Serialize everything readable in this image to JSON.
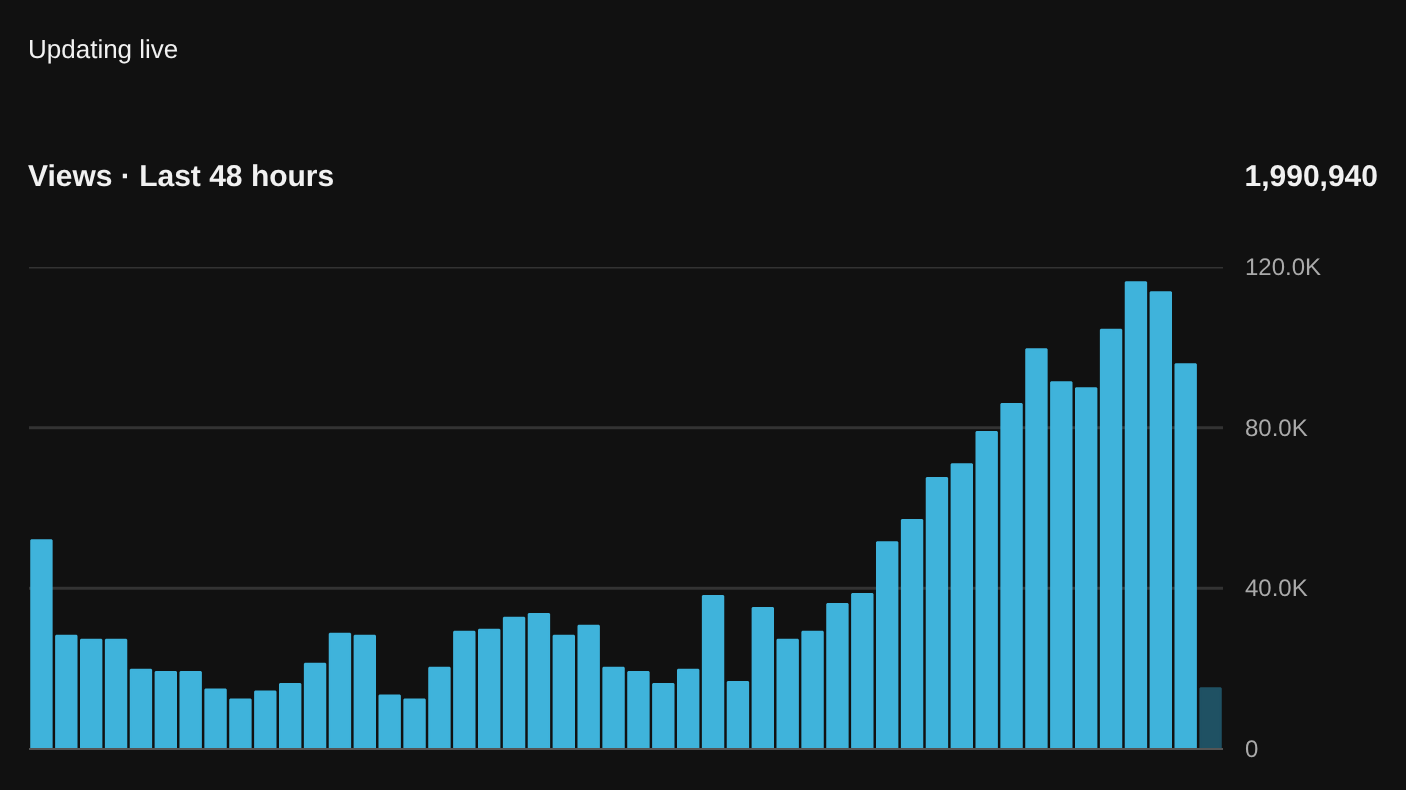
{
  "chart_data": {
    "type": "bar",
    "title": "Views · Last 48 hours",
    "annotations": [
      "Updating live",
      "1,990,940"
    ],
    "categories": [
      null,
      null,
      null,
      null,
      null,
      null,
      null,
      null,
      null,
      null,
      null,
      null,
      null,
      null,
      null,
      null,
      null,
      null,
      null,
      null,
      null,
      null,
      null,
      null,
      null,
      null,
      null,
      null,
      null,
      null,
      null,
      null,
      null,
      null,
      null,
      null,
      null,
      null,
      null,
      null,
      null,
      null,
      null,
      null,
      null,
      null,
      null,
      null
    ],
    "values": [
      52000,
      28200,
      27200,
      27200,
      19700,
      19200,
      19200,
      14800,
      12300,
      14300,
      16200,
      21200,
      28700,
      28200,
      13300,
      12300,
      20200,
      29200,
      29700,
      32700,
      33600,
      28200,
      30700,
      20200,
      19200,
      16200,
      19700,
      38100,
      16700,
      35100,
      27200,
      29200,
      36100,
      38600,
      51500,
      57000,
      67500,
      70900,
      78900,
      85900,
      99500,
      91300,
      89800,
      104400,
      116200,
      113700,
      95800,
      15100
    ],
    "colors": [
      "#3fb3db",
      "#3fb3db",
      "#3fb3db",
      "#3fb3db",
      "#3fb3db",
      "#3fb3db",
      "#3fb3db",
      "#3fb3db",
      "#3fb3db",
      "#3fb3db",
      "#3fb3db",
      "#3fb3db",
      "#3fb3db",
      "#3fb3db",
      "#3fb3db",
      "#3fb3db",
      "#3fb3db",
      "#3fb3db",
      "#3fb3db",
      "#3fb3db",
      "#3fb3db",
      "#3fb3db",
      "#3fb3db",
      "#3fb3db",
      "#3fb3db",
      "#3fb3db",
      "#3fb3db",
      "#3fb3db",
      "#3fb3db",
      "#3fb3db",
      "#3fb3db",
      "#3fb3db",
      "#3fb3db",
      "#3fb3db",
      "#3fb3db",
      "#3fb3db",
      "#3fb3db",
      "#3fb3db",
      "#3fb3db",
      "#3fb3db",
      "#3fb3db",
      "#3fb3db",
      "#3fb3db",
      "#3fb3db",
      "#3fb3db",
      "#3fb3db",
      "#3fb3db",
      "#1f5163"
    ],
    "ylim": [
      0,
      120000
    ],
    "yticks": [
      0,
      {
        "value": 40000,
        "label": "40.0K"
      },
      {
        "value": 80000,
        "label": "80.0K"
      },
      {
        "value": 120000,
        "label": "120.0K"
      }
    ],
    "grid": "y",
    "tick_labels": "y"
  }
}
